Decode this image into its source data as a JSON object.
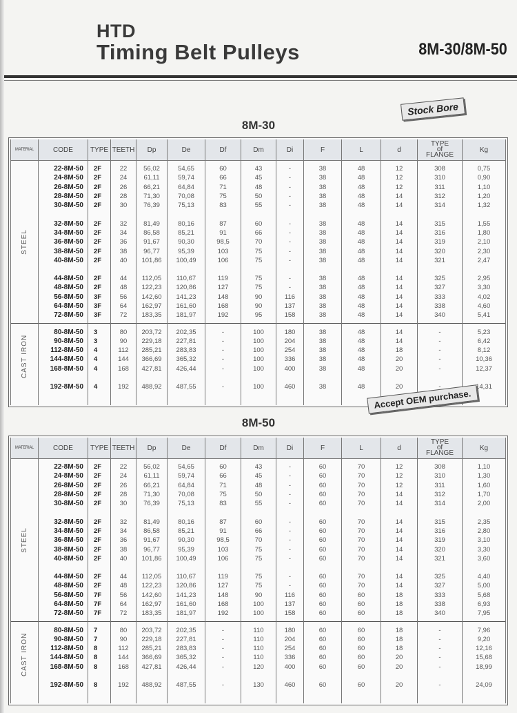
{
  "header": {
    "brand": "HTD",
    "title": "Timing Belt Pulleys",
    "model": "8M-30/8M-50"
  },
  "stamps": {
    "stock_bore": "Stock Bore",
    "oem": "Accept OEM purchase."
  },
  "columns": [
    "MATERIAL",
    "CODE",
    "TYPE",
    "TEETH",
    "Dp",
    "De",
    "Df",
    "Dm",
    "Di",
    "F",
    "L",
    "d",
    "TYPE of FLANGE",
    "Kg"
  ],
  "tables": [
    {
      "title": "8M-30",
      "materials": [
        {
          "name": "STEEL",
          "groups": [
            [
              [
                "22-8M-50",
                "2F",
                "22",
                "56,02",
                "54,65",
                "60",
                "43",
                "-",
                "38",
                "48",
                "12",
                "308",
                "0,75"
              ],
              [
                "24-8M-50",
                "2F",
                "24",
                "61,11",
                "59,74",
                "66",
                "45",
                "-",
                "38",
                "48",
                "12",
                "310",
                "0,90"
              ],
              [
                "26-8M-50",
                "2F",
                "26",
                "66,21",
                "64,84",
                "71",
                "48",
                "-",
                "38",
                "48",
                "12",
                "311",
                "1,10"
              ],
              [
                "28-8M-50",
                "2F",
                "28",
                "71,30",
                "70,08",
                "75",
                "50",
                "-",
                "38",
                "48",
                "14",
                "312",
                "1,20"
              ],
              [
                "30-8M-50",
                "2F",
                "30",
                "76,39",
                "75,13",
                "83",
                "55",
                "-",
                "38",
                "48",
                "14",
                "314",
                "1,32"
              ]
            ],
            [
              [
                "32-8M-50",
                "2F",
                "32",
                "81,49",
                "80,16",
                "87",
                "60",
                "-",
                "38",
                "48",
                "14",
                "315",
                "1,55"
              ],
              [
                "34-8M-50",
                "2F",
                "34",
                "86,58",
                "85,21",
                "91",
                "66",
                "-",
                "38",
                "48",
                "14",
                "316",
                "1,80"
              ],
              [
                "36-8M-50",
                "2F",
                "36",
                "91,67",
                "90,30",
                "98,5",
                "70",
                "-",
                "38",
                "48",
                "14",
                "319",
                "2,10"
              ],
              [
                "38-8M-50",
                "2F",
                "38",
                "96,77",
                "95,39",
                "103",
                "75",
                "-",
                "38",
                "48",
                "14",
                "320",
                "2,30"
              ],
              [
                "40-8M-50",
                "2F",
                "40",
                "101,86",
                "100,49",
                "106",
                "75",
                "-",
                "38",
                "48",
                "14",
                "321",
                "2,47"
              ]
            ],
            [
              [
                "44-8M-50",
                "2F",
                "44",
                "112,05",
                "110,67",
                "119",
                "75",
                "-",
                "38",
                "48",
                "14",
                "325",
                "2,95"
              ],
              [
                "48-8M-50",
                "2F",
                "48",
                "122,23",
                "120,86",
                "127",
                "75",
                "-",
                "38",
                "48",
                "14",
                "327",
                "3,30"
              ],
              [
                "56-8M-50",
                "3F",
                "56",
                "142,60",
                "141,23",
                "148",
                "90",
                "116",
                "38",
                "48",
                "14",
                "333",
                "4,02"
              ],
              [
                "64-8M-50",
                "3F",
                "64",
                "162,97",
                "161,60",
                "168",
                "90",
                "137",
                "38",
                "48",
                "14",
                "338",
                "4,60"
              ],
              [
                "72-8M-50",
                "3F",
                "72",
                "183,35",
                "181,97",
                "192",
                "95",
                "158",
                "38",
                "48",
                "14",
                "340",
                "5,41"
              ]
            ]
          ]
        },
        {
          "name": "CAST IRON",
          "groups": [
            [
              [
                "80-8M-50",
                "3",
                "80",
                "203,72",
                "202,35",
                "-",
                "100",
                "180",
                "38",
                "48",
                "14",
                "-",
                "5,23"
              ],
              [
                "90-8M-50",
                "3",
                "90",
                "229,18",
                "227,81",
                "-",
                "100",
                "204",
                "38",
                "48",
                "14",
                "-",
                "6,42"
              ],
              [
                "112-8M-50",
                "4",
                "112",
                "285,21",
                "283,83",
                "-",
                "100",
                "254",
                "38",
                "48",
                "18",
                "-",
                "8,12"
              ],
              [
                "144-8M-50",
                "4",
                "144",
                "366,69",
                "365,32",
                "-",
                "100",
                "336",
                "38",
                "48",
                "20",
                "-",
                "10,36"
              ],
              [
                "168-8M-50",
                "4",
                "168",
                "427,81",
                "426,44",
                "-",
                "100",
                "400",
                "38",
                "48",
                "20",
                "-",
                "12,37"
              ]
            ],
            [
              [
                "192-8M-50",
                "4",
                "192",
                "488,92",
                "487,55",
                "-",
                "100",
                "460",
                "38",
                "48",
                "20",
                "-",
                "14,31"
              ]
            ]
          ]
        }
      ]
    },
    {
      "title": "8M-50",
      "materials": [
        {
          "name": "STEEL",
          "groups": [
            [
              [
                "22-8M-50",
                "2F",
                "22",
                "56,02",
                "54,65",
                "60",
                "43",
                "-",
                "60",
                "70",
                "12",
                "308",
                "1,10"
              ],
              [
                "24-8M-50",
                "2F",
                "24",
                "61,11",
                "59,74",
                "66",
                "45",
                "-",
                "60",
                "70",
                "12",
                "310",
                "1,30"
              ],
              [
                "26-8M-50",
                "2F",
                "26",
                "66,21",
                "64,84",
                "71",
                "48",
                "-",
                "60",
                "70",
                "12",
                "311",
                "1,60"
              ],
              [
                "28-8M-50",
                "2F",
                "28",
                "71,30",
                "70,08",
                "75",
                "50",
                "-",
                "60",
                "70",
                "14",
                "312",
                "1,70"
              ],
              [
                "30-8M-50",
                "2F",
                "30",
                "76,39",
                "75,13",
                "83",
                "55",
                "-",
                "60",
                "70",
                "14",
                "314",
                "2,00"
              ]
            ],
            [
              [
                "32-8M-50",
                "2F",
                "32",
                "81,49",
                "80,16",
                "87",
                "60",
                "-",
                "60",
                "70",
                "14",
                "315",
                "2,35"
              ],
              [
                "34-8M-50",
                "2F",
                "34",
                "86,58",
                "85,21",
                "91",
                "66",
                "-",
                "60",
                "70",
                "14",
                "316",
                "2,80"
              ],
              [
                "36-8M-50",
                "2F",
                "36",
                "91,67",
                "90,30",
                "98,5",
                "70",
                "-",
                "60",
                "70",
                "14",
                "319",
                "3,10"
              ],
              [
                "38-8M-50",
                "2F",
                "38",
                "96,77",
                "95,39",
                "103",
                "75",
                "-",
                "60",
                "70",
                "14",
                "320",
                "3,30"
              ],
              [
                "40-8M-50",
                "2F",
                "40",
                "101,86",
                "100,49",
                "106",
                "75",
                "-",
                "60",
                "70",
                "14",
                "321",
                "3,60"
              ]
            ],
            [
              [
                "44-8M-50",
                "2F",
                "44",
                "112,05",
                "110,67",
                "119",
                "75",
                "-",
                "60",
                "70",
                "14",
                "325",
                "4,40"
              ],
              [
                "48-8M-50",
                "2F",
                "48",
                "122,23",
                "120,86",
                "127",
                "75",
                "-",
                "60",
                "70",
                "14",
                "327",
                "5,00"
              ],
              [
                "56-8M-50",
                "7F",
                "56",
                "142,60",
                "141,23",
                "148",
                "90",
                "116",
                "60",
                "60",
                "18",
                "333",
                "5,68"
              ],
              [
                "64-8M-50",
                "7F",
                "64",
                "162,97",
                "161,60",
                "168",
                "100",
                "137",
                "60",
                "60",
                "18",
                "338",
                "6,93"
              ],
              [
                "72-8M-50",
                "7F",
                "72",
                "183,35",
                "181,97",
                "192",
                "100",
                "158",
                "60",
                "60",
                "18",
                "340",
                "7,95"
              ]
            ]
          ]
        },
        {
          "name": "CAST IRON",
          "groups": [
            [
              [
                "80-8M-50",
                "7",
                "80",
                "203,72",
                "202,35",
                "-",
                "110",
                "180",
                "60",
                "60",
                "18",
                "-",
                "7,96"
              ],
              [
                "90-8M-50",
                "7",
                "90",
                "229,18",
                "227,81",
                "-",
                "110",
                "204",
                "60",
                "60",
                "18",
                "-",
                "9,20"
              ],
              [
                "112-8M-50",
                "8",
                "112",
                "285,21",
                "283,83",
                "-",
                "110",
                "254",
                "60",
                "60",
                "18",
                "-",
                "12,16"
              ],
              [
                "144-8M-50",
                "8",
                "144",
                "366,69",
                "365,32",
                "-",
                "110",
                "336",
                "60",
                "60",
                "20",
                "-",
                "15,68"
              ],
              [
                "168-8M-50",
                "8",
                "168",
                "427,81",
                "426,44",
                "-",
                "120",
                "400",
                "60",
                "60",
                "20",
                "-",
                "18,99"
              ]
            ],
            [
              [
                "192-8M-50",
                "8",
                "192",
                "488,92",
                "487,55",
                "-",
                "130",
                "460",
                "60",
                "60",
                "20",
                "-",
                "24,09"
              ]
            ]
          ]
        }
      ]
    }
  ]
}
